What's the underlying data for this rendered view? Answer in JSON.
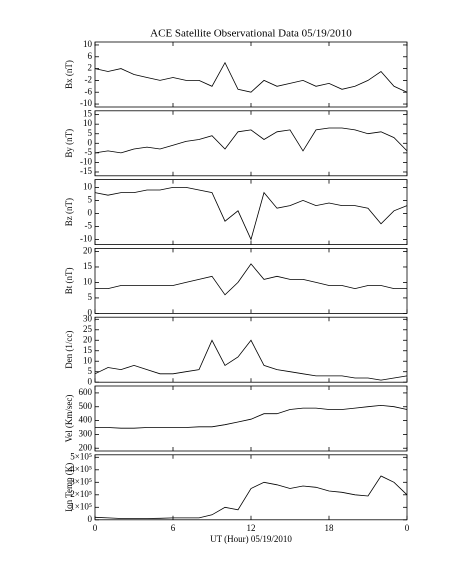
{
  "chart_data": [
    {
      "type": "line",
      "title": "ACE Satellite Observational Data   05/19/2010",
      "ylabel": "Bx (nT)",
      "color": "#000000",
      "x": [
        0,
        1,
        2,
        3,
        4,
        5,
        6,
        7,
        8,
        9,
        10,
        11,
        12,
        13,
        14,
        15,
        16,
        17,
        18,
        19,
        20,
        21,
        22,
        23,
        24
      ],
      "values": [
        2,
        1,
        2,
        0,
        -1,
        -2,
        -1,
        -2,
        -2,
        -4,
        4,
        -5,
        -6,
        -2,
        -4,
        -3,
        -2,
        -4,
        -3,
        -5,
        -4,
        -2,
        1,
        -4,
        -6
      ],
      "xlim": [
        0,
        24
      ],
      "xticks": [
        0,
        6,
        12,
        18,
        24
      ],
      "ylim": [
        -11,
        11
      ],
      "yticks": [
        -10,
        -6,
        -2,
        2,
        6,
        10
      ]
    },
    {
      "type": "line",
      "ylabel": "By (nT)",
      "color": "#000000",
      "x": [
        0,
        1,
        2,
        3,
        4,
        5,
        6,
        7,
        8,
        9,
        10,
        11,
        12,
        13,
        14,
        15,
        16,
        17,
        18,
        19,
        20,
        21,
        22,
        23,
        24
      ],
      "values": [
        -5,
        -4,
        -5,
        -3,
        -2,
        -3,
        -1,
        1,
        2,
        4,
        -3,
        6,
        7,
        2,
        6,
        7,
        -4,
        7,
        8,
        8,
        7,
        5,
        6,
        3,
        -4
      ],
      "xlim": [
        0,
        24
      ],
      "xticks": [
        0,
        6,
        12,
        18,
        24
      ],
      "ylim": [
        -17,
        17
      ],
      "yticks": [
        -15,
        -10,
        -5,
        0,
        5,
        10,
        15
      ]
    },
    {
      "type": "line",
      "ylabel": "Bz (nT)",
      "color": "#000000",
      "x": [
        0,
        1,
        2,
        3,
        4,
        5,
        6,
        7,
        8,
        9,
        10,
        11,
        12,
        13,
        14,
        15,
        16,
        17,
        18,
        19,
        20,
        21,
        22,
        23,
        24
      ],
      "values": [
        8,
        7,
        8,
        8,
        9,
        9,
        10,
        10,
        9,
        8,
        -3,
        1,
        -10,
        8,
        2,
        3,
        5,
        3,
        4,
        3,
        3,
        2,
        -4,
        1,
        3
      ],
      "xlim": [
        0,
        24
      ],
      "xticks": [
        0,
        6,
        12,
        18,
        24
      ],
      "ylim": [
        -12,
        13
      ],
      "yticks": [
        -10,
        -5,
        0,
        5,
        10
      ]
    },
    {
      "type": "line",
      "ylabel": "Bt (nT)",
      "color": "#000000",
      "x": [
        0,
        1,
        2,
        3,
        4,
        5,
        6,
        7,
        8,
        9,
        10,
        11,
        12,
        13,
        14,
        15,
        16,
        17,
        18,
        19,
        20,
        21,
        22,
        23,
        24
      ],
      "values": [
        8,
        8,
        9,
        9,
        9,
        9,
        9,
        10,
        11,
        12,
        6,
        10,
        16,
        11,
        12,
        11,
        11,
        10,
        9,
        9,
        8,
        9,
        9,
        8,
        8
      ],
      "xlim": [
        0,
        24
      ],
      "xticks": [
        0,
        6,
        12,
        18,
        24
      ],
      "ylim": [
        0,
        21
      ],
      "yticks": [
        0,
        5,
        10,
        15,
        20
      ]
    },
    {
      "type": "line",
      "ylabel": "Den (1/cc)",
      "color": "#000000",
      "x": [
        0,
        1,
        2,
        3,
        4,
        5,
        6,
        7,
        8,
        9,
        10,
        11,
        12,
        13,
        14,
        15,
        16,
        17,
        18,
        19,
        20,
        21,
        22,
        23,
        24
      ],
      "values": [
        4,
        7,
        6,
        8,
        6,
        4,
        4,
        5,
        6,
        20,
        8,
        12,
        20,
        8,
        6,
        5,
        4,
        3,
        3,
        3,
        2,
        2,
        1,
        2,
        3
      ],
      "xlim": [
        0,
        24
      ],
      "xticks": [
        0,
        6,
        12,
        18,
        24
      ],
      "ylim": [
        0,
        31
      ],
      "yticks": [
        0,
        5,
        10,
        15,
        20,
        25,
        30
      ]
    },
    {
      "type": "line",
      "ylabel": "Vel (Km/sec)",
      "color": "#000000",
      "x": [
        0,
        1,
        2,
        3,
        4,
        5,
        6,
        7,
        8,
        9,
        10,
        11,
        12,
        13,
        14,
        15,
        16,
        17,
        18,
        19,
        20,
        21,
        22,
        23,
        24
      ],
      "values": [
        350,
        350,
        345,
        345,
        350,
        350,
        350,
        350,
        355,
        355,
        370,
        390,
        410,
        450,
        450,
        480,
        490,
        490,
        480,
        480,
        490,
        500,
        510,
        500,
        480
      ],
      "xlim": [
        0,
        24
      ],
      "xticks": [
        0,
        6,
        12,
        18,
        24
      ],
      "ylim": [
        180,
        650
      ],
      "yticks": [
        200,
        300,
        400,
        500,
        600
      ]
    },
    {
      "type": "line",
      "ylabel": "Ion Temp (K)",
      "xlabel": "UT (Hour)   05/19/2010",
      "color": "#000000",
      "x": [
        0,
        1,
        2,
        3,
        4,
        5,
        6,
        7,
        8,
        9,
        10,
        11,
        12,
        13,
        14,
        15,
        16,
        17,
        18,
        19,
        20,
        21,
        22,
        23,
        24
      ],
      "values": [
        20000,
        15000,
        10000,
        10000,
        10000,
        12000,
        15000,
        15000,
        15000,
        40000,
        100000,
        80000,
        250000,
        300000,
        280000,
        250000,
        270000,
        260000,
        230000,
        220000,
        200000,
        190000,
        350000,
        300000,
        200000
      ],
      "xlim": [
        0,
        24
      ],
      "xticks": [
        0,
        6,
        12,
        18,
        {
          "value": 24,
          "label": "0"
        }
      ],
      "ylim": [
        0,
        520000
      ],
      "yticks": [
        0,
        {
          "value": 100000,
          "label": "1×10⁵"
        },
        {
          "value": 200000,
          "label": "2×10⁵"
        },
        {
          "value": 300000,
          "label": "3×10⁵"
        },
        {
          "value": 400000,
          "label": "4×10⁵"
        },
        {
          "value": 500000,
          "label": "5×10⁵"
        }
      ]
    }
  ]
}
